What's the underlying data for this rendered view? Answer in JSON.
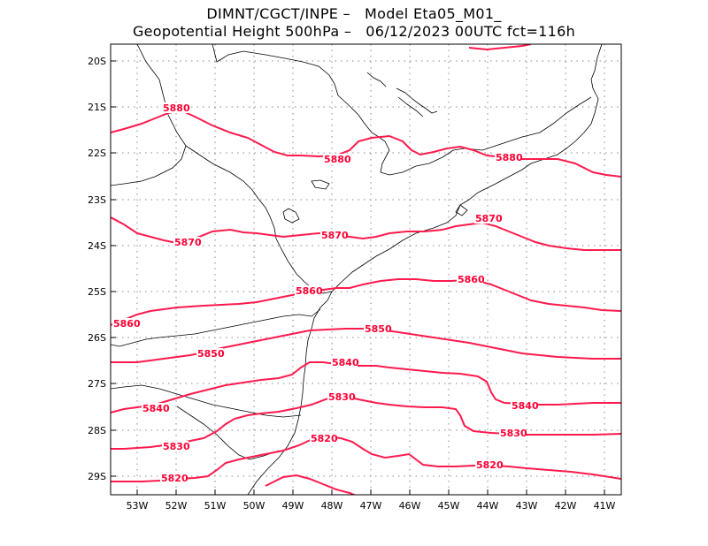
{
  "title_line1": "DIMNT/CGCT/INPE –   Model Eta05_M01_",
  "title_line2": "Geopotential Height 500hPa –   06/12/2023 00UTC fct=116h",
  "colors": {
    "contour": "#ff1a4d",
    "label": "#ff0033",
    "coast": "#000000",
    "grid": "#888888"
  },
  "y_axis_labels": [
    "20S",
    "21S",
    "22S",
    "23S",
    "24S",
    "25S",
    "26S",
    "27S",
    "28S",
    "29S"
  ],
  "x_axis_labels": [
    "53W",
    "52W",
    "51W",
    "50W",
    "49W",
    "48W",
    "47W",
    "46W",
    "45W",
    "44W",
    "43W",
    "42W",
    "41W"
  ],
  "chart_data": {
    "type": "contour-map",
    "variable": "Geopotential Height 500hPa",
    "lon_range": [
      -53.6,
      -40.5
    ],
    "lat_range": [
      -29.4,
      -19.6
    ],
    "grid": true,
    "contours": [
      {
        "level": 5880,
        "labels": [
          "5880",
          "5880",
          "5880"
        ]
      },
      {
        "level": 5870,
        "labels": [
          "5870",
          "5870",
          "5870"
        ]
      },
      {
        "level": 5860,
        "labels": [
          "5860",
          "5860",
          "5860"
        ]
      },
      {
        "level": 5850,
        "labels": [
          "5850",
          "5850"
        ]
      },
      {
        "level": 5840,
        "labels": [
          "5840",
          "5840",
          "5840"
        ]
      },
      {
        "level": 5830,
        "labels": [
          "5830",
          "5830",
          "5830"
        ]
      },
      {
        "level": 5820,
        "labels": [
          "5820",
          "5820",
          "5820"
        ]
      }
    ]
  }
}
